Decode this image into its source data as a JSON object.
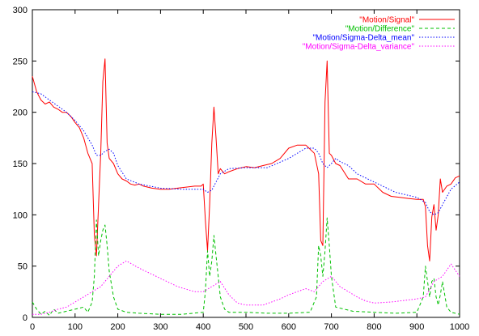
{
  "chart_data": {
    "type": "line",
    "title": "",
    "xlabel": "",
    "ylabel": "",
    "xlim": [
      0,
      1000
    ],
    "ylim": [
      0,
      300
    ],
    "xticks": [
      0,
      100,
      200,
      300,
      400,
      500,
      600,
      700,
      800,
      900,
      1000
    ],
    "yticks": [
      0,
      50,
      100,
      150,
      200,
      250,
      300
    ],
    "grid": false,
    "legend_position": "top-right",
    "series": [
      {
        "name": "\"Motion/Signal\"",
        "color": "#ff0000",
        "dash": "solid",
        "x": [
          0,
          10,
          20,
          30,
          40,
          50,
          60,
          70,
          80,
          90,
          100,
          110,
          120,
          130,
          140,
          145,
          150,
          155,
          160,
          165,
          170,
          175,
          180,
          190,
          200,
          210,
          220,
          230,
          240,
          250,
          260,
          280,
          300,
          320,
          340,
          360,
          380,
          395,
          400,
          405,
          410,
          415,
          420,
          425,
          430,
          435,
          440,
          450,
          460,
          480,
          500,
          520,
          540,
          560,
          580,
          600,
          620,
          640,
          660,
          670,
          675,
          680,
          685,
          690,
          695,
          700,
          710,
          720,
          740,
          760,
          780,
          800,
          820,
          840,
          860,
          880,
          900,
          915,
          920,
          925,
          930,
          935,
          940,
          945,
          950,
          955,
          960,
          970,
          980,
          990,
          1000
        ],
        "y": [
          235,
          220,
          212,
          208,
          210,
          205,
          203,
          200,
          200,
          196,
          190,
          185,
          175,
          160,
          150,
          80,
          60,
          110,
          160,
          230,
          252,
          170,
          155,
          150,
          140,
          135,
          133,
          130,
          129,
          130,
          128,
          126,
          125,
          125,
          126,
          127,
          128,
          128,
          130,
          95,
          65,
          110,
          170,
          205,
          175,
          140,
          145,
          140,
          142,
          145,
          147,
          146,
          148,
          150,
          155,
          165,
          168,
          168,
          160,
          140,
          75,
          70,
          210,
          250,
          160,
          158,
          150,
          148,
          135,
          135,
          130,
          130,
          122,
          118,
          117,
          116,
          115,
          115,
          108,
          70,
          55,
          98,
          110,
          85,
          100,
          135,
          122,
          128,
          130,
          136,
          138
        ]
      },
      {
        "name": "\"Motion/Difference\"",
        "color": "#00c000",
        "dash": "dashed",
        "x": [
          0,
          10,
          20,
          30,
          40,
          50,
          60,
          80,
          100,
          120,
          130,
          140,
          145,
          150,
          155,
          160,
          165,
          170,
          175,
          180,
          190,
          200,
          220,
          250,
          300,
          350,
          400,
          405,
          410,
          415,
          420,
          425,
          430,
          435,
          440,
          450,
          460,
          500,
          550,
          600,
          650,
          665,
          670,
          675,
          680,
          685,
          690,
          695,
          700,
          710,
          750,
          800,
          850,
          900,
          915,
          920,
          925,
          930,
          935,
          940,
          945,
          950,
          955,
          960,
          970,
          980,
          1000
        ],
        "y": [
          15,
          8,
          3,
          6,
          2,
          8,
          4,
          6,
          8,
          10,
          5,
          15,
          40,
          95,
          60,
          75,
          85,
          90,
          70,
          45,
          20,
          8,
          5,
          4,
          3,
          3,
          5,
          25,
          65,
          40,
          55,
          80,
          60,
          40,
          20,
          8,
          5,
          5,
          4,
          4,
          5,
          20,
          70,
          60,
          40,
          65,
          97,
          70,
          40,
          10,
          6,
          5,
          4,
          5,
          20,
          50,
          35,
          20,
          35,
          38,
          20,
          12,
          22,
          35,
          10,
          5,
          3
        ]
      },
      {
        "name": "\"Motion/Sigma-Delta_mean\"",
        "color": "#0000ff",
        "dash": "dotted",
        "x": [
          0,
          20,
          40,
          60,
          80,
          100,
          120,
          140,
          150,
          160,
          170,
          180,
          190,
          200,
          220,
          250,
          300,
          350,
          380,
          400,
          410,
          420,
          430,
          440,
          460,
          500,
          550,
          600,
          640,
          660,
          670,
          680,
          690,
          700,
          710,
          720,
          740,
          760,
          800,
          850,
          900,
          920,
          930,
          940,
          950,
          960,
          980,
          1000
        ],
        "y": [
          220,
          218,
          212,
          206,
          200,
          192,
          182,
          168,
          158,
          158,
          162,
          164,
          160,
          148,
          135,
          130,
          126,
          125,
          125,
          125,
          122,
          124,
          132,
          140,
          145,
          146,
          146,
          155,
          165,
          165,
          160,
          150,
          146,
          150,
          155,
          152,
          148,
          140,
          132,
          122,
          117,
          112,
          103,
          100,
          102,
          110,
          125,
          132
        ]
      },
      {
        "name": "\"Motion/Sigma-Delta_variance\"",
        "color": "#ff00ff",
        "dash": "dotted",
        "x": [
          0,
          20,
          40,
          60,
          80,
          100,
          120,
          140,
          160,
          180,
          200,
          220,
          250,
          280,
          300,
          340,
          380,
          400,
          420,
          440,
          460,
          480,
          500,
          540,
          580,
          600,
          640,
          660,
          680,
          700,
          720,
          740,
          760,
          780,
          800,
          840,
          880,
          900,
          920,
          940,
          960,
          980,
          1000
        ],
        "y": [
          3,
          3,
          5,
          8,
          10,
          15,
          20,
          25,
          30,
          40,
          50,
          55,
          48,
          42,
          38,
          30,
          25,
          25,
          30,
          35,
          22,
          14,
          12,
          12,
          18,
          22,
          28,
          25,
          35,
          40,
          30,
          25,
          20,
          16,
          14,
          15,
          17,
          18,
          20,
          35,
          40,
          52,
          40
        ]
      }
    ]
  }
}
